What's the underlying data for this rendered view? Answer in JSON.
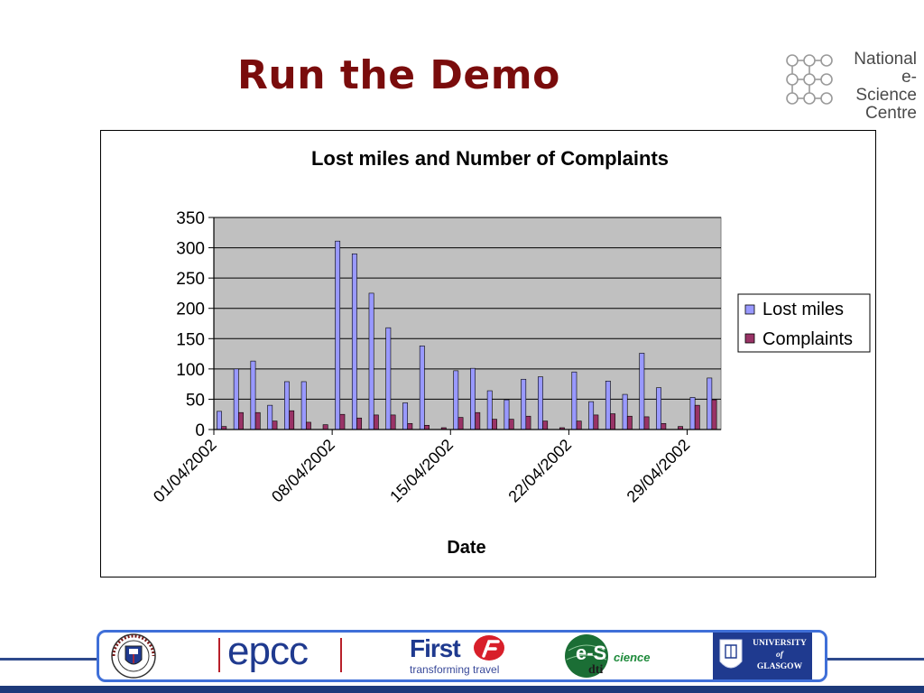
{
  "slide": {
    "title": "Run the Demo"
  },
  "nesc_logo": {
    "lines": [
      "National",
      "e-Science",
      "Centre"
    ]
  },
  "chart_data": {
    "type": "bar",
    "title": "Lost miles and Number of Complaints",
    "xlabel": "Date",
    "ylabel": "",
    "ylim": [
      0,
      350
    ],
    "yticks": [
      0,
      50,
      100,
      150,
      200,
      250,
      300,
      350
    ],
    "grid": true,
    "plot_background": "#c0c0c0",
    "legend_placement": "right",
    "x_tick_labels": [
      "01/04/2002",
      "08/04/2002",
      "15/04/2002",
      "22/04/2002",
      "29/04/2002"
    ],
    "x_tick_positions": [
      0,
      7,
      14,
      21,
      28
    ],
    "num_days": 30,
    "series": [
      {
        "name": "Lost miles",
        "color": "#9999ff",
        "values": [
          30,
          100,
          113,
          40,
          79,
          79,
          0,
          311,
          290,
          225,
          168,
          44,
          138,
          0,
          97,
          101,
          64,
          49,
          83,
          87,
          0,
          95,
          46,
          80,
          58,
          126,
          69,
          0,
          53,
          85
        ]
      },
      {
        "name": "Complaints",
        "color": "#993366",
        "values": [
          5,
          28,
          28,
          14,
          31,
          12,
          8,
          25,
          19,
          24,
          24,
          10,
          7,
          3,
          20,
          28,
          17,
          17,
          22,
          14,
          3,
          14,
          24,
          26,
          22,
          21,
          10,
          5,
          40,
          49
        ]
      }
    ]
  },
  "footer": {
    "epcc": "epcc",
    "first": "First",
    "first_tagline": "transforming travel",
    "escience_e": "e-S",
    "escience_word": "cience",
    "escience_dti": "dti",
    "glasgow_lines": [
      "UNIVERSITY",
      "of",
      "GLASGOW"
    ]
  }
}
